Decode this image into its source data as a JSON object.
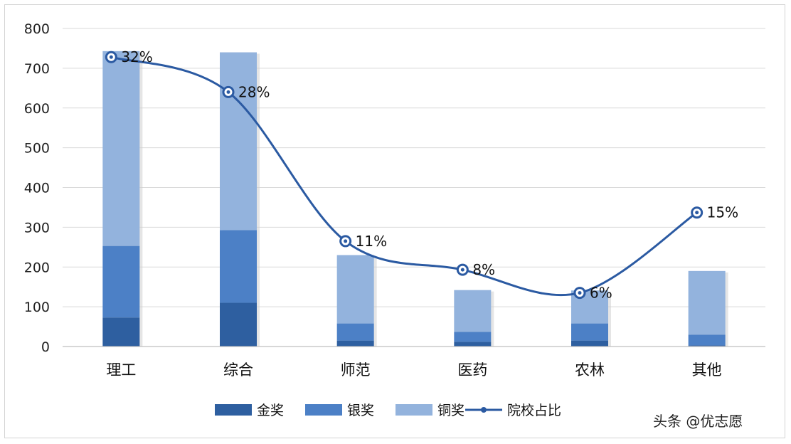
{
  "chart_data": {
    "type": "bar",
    "stacked": true,
    "categories": [
      "理工",
      "综合",
      "师范",
      "医药",
      "农林",
      "其他"
    ],
    "series": [
      {
        "name": "金奖",
        "values": [
          73,
          110,
          15,
          12,
          15,
          3
        ],
        "color": "#2e5fa0"
      },
      {
        "name": "银奖",
        "values": [
          180,
          183,
          43,
          25,
          43,
          27
        ],
        "color": "#4c80c6"
      },
      {
        "name": "铜奖",
        "values": [
          490,
          447,
          172,
          105,
          83,
          160
        ],
        "color": "#93b3dd"
      }
    ],
    "line_series": {
      "name": "院校占比",
      "labels": [
        "32%",
        "28%",
        "11%",
        "8%",
        "6%",
        "15%"
      ],
      "values": [
        728,
        640,
        265,
        193,
        135,
        337
      ],
      "color": "#2b5aa2"
    },
    "ylim": [
      0,
      800
    ],
    "yticks": [
      0,
      100,
      200,
      300,
      400,
      500,
      600,
      700,
      800
    ],
    "grid": true,
    "legend": "bottom"
  },
  "watermark": {
    "text": "头条 @优志愿"
  }
}
